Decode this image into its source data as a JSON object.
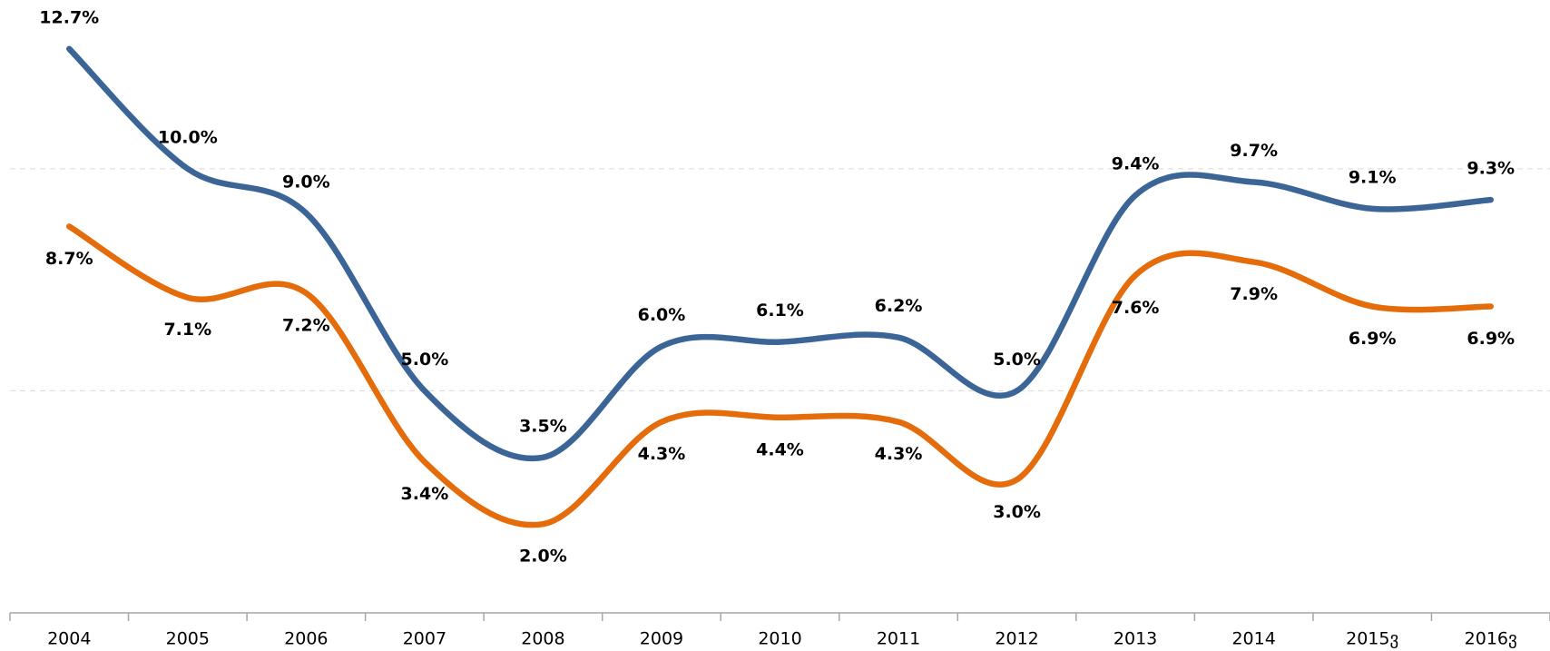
{
  "chart_data": {
    "type": "line",
    "categories": [
      "2004",
      "2005",
      "2006",
      "2007",
      "2008",
      "2009",
      "2010",
      "2011",
      "2012",
      "2013",
      "2014",
      "2015ვ",
      "2016ვ"
    ],
    "series": [
      {
        "color": "#3b6497",
        "values": [
          12.7,
          10.0,
          9.0,
          5.0,
          3.5,
          6.0,
          6.1,
          6.2,
          5.0,
          9.4,
          9.7,
          9.1,
          9.3
        ],
        "value_labels": [
          "12.7%",
          "10.0%",
          "9.0%",
          "5.0%",
          "3.5%",
          "6.0%",
          "6.1%",
          "6.2%",
          "5.0%",
          "9.4%",
          "9.7%",
          "9.1%",
          "9.3%"
        ]
      },
      {
        "color": "#e46c0a",
        "values": [
          8.7,
          7.1,
          7.2,
          3.4,
          2.0,
          4.3,
          4.4,
          4.3,
          3.0,
          7.6,
          7.9,
          6.9,
          6.9
        ],
        "value_labels": [
          "8.7%",
          "7.1%",
          "7.2%",
          "3.4%",
          "2.0%",
          "4.3%",
          "4.4%",
          "4.3%",
          "3.0%",
          "7.6%",
          "7.9%",
          "6.9%",
          "6.9%"
        ]
      }
    ],
    "ylim": [
      0,
      13.8
    ],
    "yticks": [
      5,
      10
    ],
    "grid": true,
    "ytick_labels_shown": false
  }
}
